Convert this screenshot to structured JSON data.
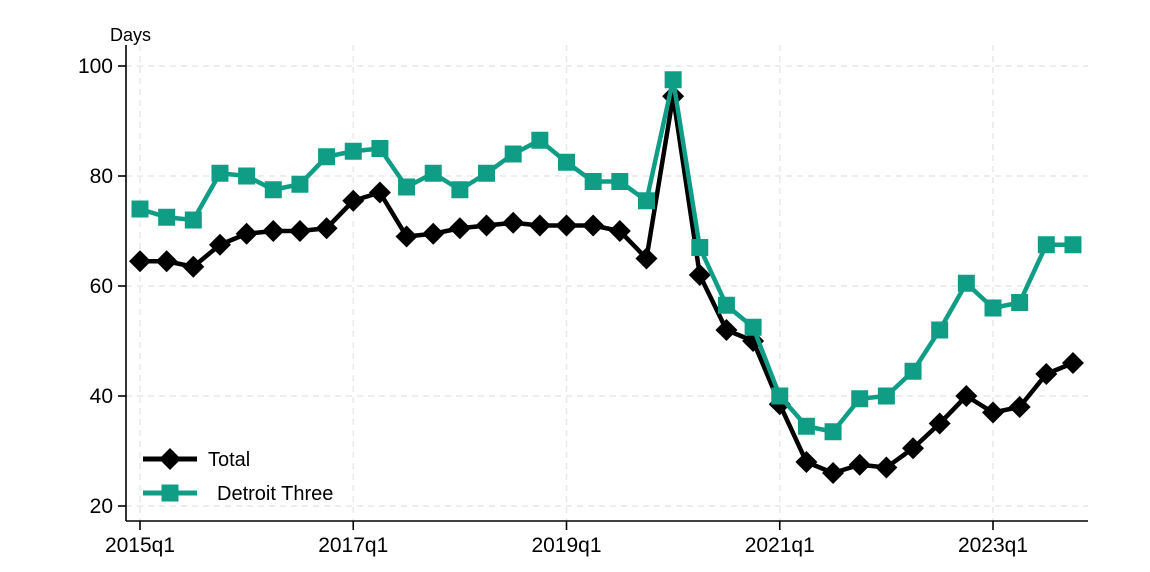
{
  "page": {
    "background": "#ffffff",
    "grid_color": "#e9e9e9",
    "axis_color": "#000000"
  },
  "chart_data": {
    "type": "line",
    "title": "",
    "ylabel": "Days",
    "xlabel": "",
    "ylim": [
      20,
      100
    ],
    "grid": true,
    "legend_position": "bottom-left-inside",
    "y_ticks": [
      20,
      40,
      60,
      80,
      100
    ],
    "x_tick_labels": [
      "2015q1",
      "2017q1",
      "2019q1",
      "2021q1",
      "2023q1"
    ],
    "x_tick_positions": [
      0,
      8,
      16,
      24,
      32
    ],
    "categories": [
      "2015q1",
      "2015q2",
      "2015q3",
      "2015q4",
      "2016q1",
      "2016q2",
      "2016q3",
      "2016q4",
      "2017q1",
      "2017q2",
      "2017q3",
      "2017q4",
      "2018q1",
      "2018q2",
      "2018q3",
      "2018q4",
      "2019q1",
      "2019q2",
      "2019q3",
      "2019q4",
      "2020q1",
      "2020q2",
      "2020q3",
      "2020q4",
      "2021q1",
      "2021q2",
      "2021q3",
      "2021q4",
      "2022q1",
      "2022q2",
      "2022q3",
      "2022q4",
      "2023q1",
      "2023q2",
      "2023q3",
      "2023q4"
    ],
    "series": [
      {
        "name": "Total",
        "marker": "diamond",
        "color": "#000000",
        "values": [
          64.5,
          64.5,
          63.5,
          67.5,
          69.5,
          70,
          70,
          70.5,
          75.5,
          77,
          69,
          69.5,
          70.5,
          71,
          71.5,
          71,
          71,
          71,
          70,
          65,
          94.5,
          62,
          52,
          50,
          38.5,
          28,
          26,
          27.5,
          27,
          30.5,
          35,
          40,
          37,
          38,
          44,
          46
        ]
      },
      {
        "name": "Detroit Three",
        "marker": "square",
        "color": "#0f9e85",
        "values": [
          74,
          72.5,
          72,
          80.5,
          80,
          77.5,
          78.5,
          83.5,
          84.5,
          85,
          78,
          80.5,
          77.5,
          80.5,
          84,
          86.5,
          82.5,
          79,
          79,
          75.5,
          97.5,
          67,
          56.5,
          52.5,
          40,
          34.5,
          33.5,
          39.5,
          40,
          44.5,
          52,
          60.5,
          56,
          57,
          67.5,
          67.5
        ]
      }
    ]
  }
}
